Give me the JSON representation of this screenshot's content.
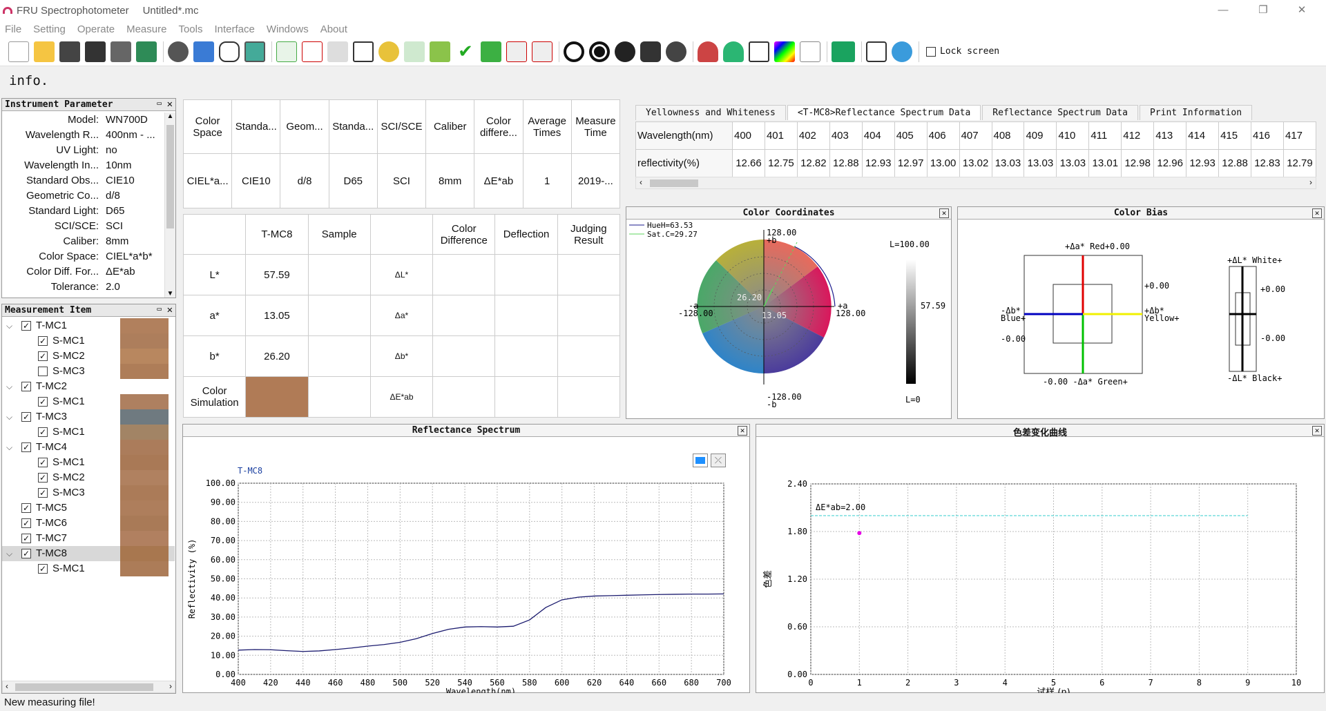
{
  "window": {
    "app": "FRU Spectrophotometer",
    "document": "Untitled*.mc",
    "minimize": "—",
    "restore": "❐",
    "close": "✕"
  },
  "menu": [
    "File",
    "Setting",
    "Operate",
    "Measure",
    "Tools",
    "Interface",
    "Windows",
    "About"
  ],
  "toolbar": {
    "lock_screen": "Lock screen"
  },
  "info_label": "info.",
  "instrument": {
    "title": "Instrument Parameter",
    "rows": [
      {
        "k": "Model:",
        "v": "WN700D"
      },
      {
        "k": "Wavelength R...",
        "v": "400nm - ..."
      },
      {
        "k": "UV Light:",
        "v": "no"
      },
      {
        "k": "Wavelength In...",
        "v": "10nm"
      },
      {
        "k": "Standard Obs...",
        "v": "CIE10"
      },
      {
        "k": "Geometric Co...",
        "v": "d/8"
      },
      {
        "k": "Standard Light:",
        "v": "D65"
      },
      {
        "k": "SCI/SCE:",
        "v": "SCI"
      },
      {
        "k": "Caliber:",
        "v": "8mm"
      },
      {
        "k": "Color Space:",
        "v": "CIEL*a*b*"
      },
      {
        "k": "Color Diff. For...",
        "v": "ΔE*ab"
      },
      {
        "k": "Tolerance:",
        "v": "2.0"
      }
    ]
  },
  "measurement": {
    "title": "Measurement Item",
    "items": [
      {
        "label": "T-MC1",
        "level": 0,
        "expanded": true,
        "checked": true,
        "color": "#b1805d"
      },
      {
        "label": "S-MC1",
        "level": 1,
        "checked": true,
        "color": "#ad7e5c"
      },
      {
        "label": "S-MC2",
        "level": 1,
        "checked": true,
        "color": "#b8875f"
      },
      {
        "label": "S-MC3",
        "level": 1,
        "checked": false,
        "color": "#ae7d58"
      },
      {
        "label": "T-MC2",
        "level": 0,
        "expanded": true,
        "checked": true,
        "color": "#ffffff"
      },
      {
        "label": "S-MC1",
        "level": 1,
        "checked": true,
        "color": "#ae8060"
      },
      {
        "label": "T-MC3",
        "level": 0,
        "expanded": true,
        "checked": true,
        "color": "#6f7a80"
      },
      {
        "label": "S-MC1",
        "level": 1,
        "checked": true,
        "color": "#a28465"
      },
      {
        "label": "T-MC4",
        "level": 0,
        "expanded": true,
        "checked": true,
        "color": "#ab7c5b"
      },
      {
        "label": "S-MC1",
        "level": 1,
        "checked": true,
        "color": "#a97956"
      },
      {
        "label": "S-MC2",
        "level": 1,
        "checked": true,
        "color": "#b08160"
      },
      {
        "label": "S-MC3",
        "level": 1,
        "checked": true,
        "color": "#ab7b58"
      },
      {
        "label": "T-MC5",
        "level": 0,
        "checked": true,
        "color": "#ae7e5c"
      },
      {
        "label": "T-MC6",
        "level": 0,
        "checked": true,
        "color": "#a97a57"
      },
      {
        "label": "T-MC7",
        "level": 0,
        "checked": true,
        "color": "#b18060"
      },
      {
        "label": "T-MC8",
        "level": 0,
        "expanded": true,
        "checked": true,
        "color": "#a8774f",
        "selected": true
      },
      {
        "label": "S-MC1",
        "level": 1,
        "checked": true,
        "color": "#ac7c58"
      }
    ]
  },
  "condition_table": {
    "headers": [
      "Color Space",
      "Standa...",
      "Geom...",
      "Standa...",
      "SCI/SCE",
      "Caliber",
      "Color differe...",
      "Average Times",
      "Measure Time"
    ],
    "values": [
      "CIEL*a...",
      "CIE10",
      "d/8",
      "D65",
      "SCI",
      "8mm",
      "ΔE*ab",
      "1",
      "2019-..."
    ]
  },
  "result_table": {
    "headers": [
      "",
      "T-MC8",
      "Sample",
      "",
      "Color Difference",
      "Deflection",
      "Judging Result"
    ],
    "rows": [
      {
        "name": "L*",
        "std": "57.59",
        "delta": "ΔL*"
      },
      {
        "name": "a*",
        "std": "13.05",
        "delta": "Δa*"
      },
      {
        "name": "b*",
        "std": "26.20",
        "delta": "Δb*"
      },
      {
        "name": "Color Simulation",
        "std": "",
        "delta": "ΔE*ab"
      }
    ],
    "sim_color": "#b07b56"
  },
  "spectrum_tabs": [
    "Yellowness and Whiteness",
    "<T-MC8>Reflectance Spectrum Data",
    "Reflectance Spectrum Data",
    "Print Information"
  ],
  "spectrum_table": {
    "row1_label": "Wavelength(nm)",
    "row2_label": "reflectivity(%)",
    "wavelengths": [
      "400",
      "401",
      "402",
      "403",
      "404",
      "405",
      "406",
      "407",
      "408",
      "409",
      "410",
      "411",
      "412",
      "413",
      "414",
      "415",
      "416",
      "417"
    ],
    "values": [
      "12.66",
      "12.75",
      "12.82",
      "12.88",
      "12.93",
      "12.97",
      "13.00",
      "13.02",
      "13.03",
      "13.03",
      "13.03",
      "13.01",
      "12.98",
      "12.96",
      "12.93",
      "12.88",
      "12.83",
      "12.79"
    ]
  },
  "color_coordinates": {
    "title": "Color Coordinates",
    "hue": "HueH=63.53",
    "sat": "Sat.C=29.27",
    "b_pos": "128.00",
    "b_pos_axis": "+b",
    "b_neg": "-128.00",
    "b_neg_axis": "-b",
    "a_pos": "128.00",
    "a_pos_axis": "+a",
    "a_neg": "-128.00",
    "a_neg_axis": "-a",
    "b_val": "26.20",
    "a_val": "13.05",
    "L_top": "L=100.00",
    "L_bottom": "L=0",
    "L_val": "57.59",
    "hue_color": "#1a1a8c",
    "sat_color": "#5cd65c"
  },
  "color_bias": {
    "title": "Color Bias",
    "red": "+Δa* Red+0.00",
    "green": "-0.00 -Δa* Green+",
    "blue": "-Δb*",
    "blue2": "Blue+",
    "yellow": "+Δb*",
    "yellow2": "Yellow+",
    "b_pos": "+0.00",
    "b_neg": "-0.00",
    "white": "+ΔL* White+",
    "black": "-ΔL* Black+",
    "L_pos": "+0.00",
    "L_neg": "-0.00"
  },
  "reflectance_chart": {
    "title": "Reflectance Spectrum",
    "series_label": "T-MC8",
    "xlabel": "Wavelength(nm)",
    "ylabel": "Reflectivity (%)"
  },
  "diff_chart": {
    "title": "色差变化曲线",
    "xlabel": "试样 (n)",
    "ylabel": "色差",
    "threshold_label": "ΔE*ab=2.00"
  },
  "chart_data": [
    {
      "type": "line",
      "title": "Reflectance Spectrum",
      "xlabel": "Wavelength(nm)",
      "ylabel": "Reflectivity (%)",
      "xlim": [
        400,
        700
      ],
      "ylim": [
        0,
        100
      ],
      "xticks": [
        400,
        420,
        440,
        460,
        480,
        500,
        520,
        540,
        560,
        580,
        600,
        620,
        640,
        660,
        680,
        700
      ],
      "yticks": [
        "0.00",
        "10.00",
        "20.00",
        "30.00",
        "40.00",
        "50.00",
        "60.00",
        "70.00",
        "80.00",
        "90.00",
        "100.00"
      ],
      "series": [
        {
          "name": "T-MC8",
          "color": "#1a1a6e",
          "x": [
            400,
            410,
            420,
            430,
            440,
            450,
            460,
            470,
            480,
            490,
            500,
            510,
            520,
            530,
            540,
            550,
            560,
            570,
            580,
            590,
            600,
            610,
            620,
            630,
            640,
            650,
            660,
            670,
            680,
            690,
            700
          ],
          "y": [
            12.7,
            13.0,
            12.9,
            12.4,
            12.0,
            12.3,
            13.0,
            13.8,
            14.8,
            15.6,
            16.8,
            18.7,
            21.4,
            23.6,
            24.8,
            25.0,
            24.8,
            25.2,
            28.5,
            35.0,
            39.0,
            40.4,
            41.0,
            41.2,
            41.4,
            41.6,
            41.8,
            41.9,
            42.0,
            42.0,
            42.1
          ]
        }
      ]
    },
    {
      "type": "scatter",
      "title": "色差变化曲线",
      "xlabel": "试样 (n)",
      "ylabel": "色差",
      "xlim": [
        0,
        10
      ],
      "ylim": [
        0,
        2.4
      ],
      "xticks": [
        0,
        1,
        2,
        3,
        4,
        5,
        6,
        7,
        8,
        9,
        10
      ],
      "yticks": [
        "0.00",
        "0.60",
        "1.20",
        "1.80",
        "2.40"
      ],
      "threshold": 2.0,
      "threshold_x": [
        0,
        9
      ],
      "series": [
        {
          "color": "#e600e6",
          "x": [
            1
          ],
          "y": [
            1.78
          ]
        }
      ]
    }
  ],
  "status": "New measuring file!"
}
